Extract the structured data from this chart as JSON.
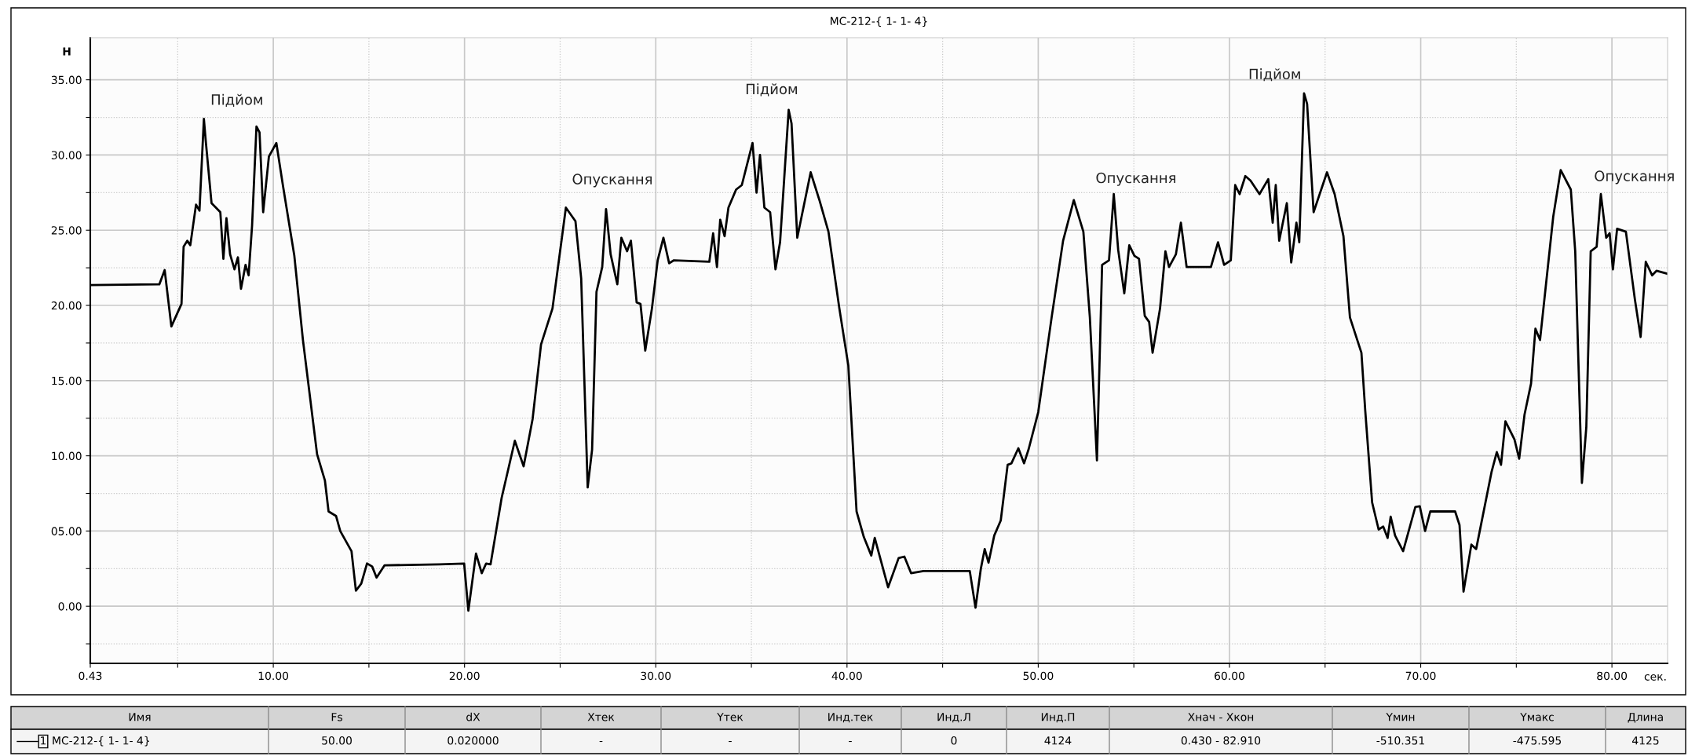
{
  "chart_data": {
    "type": "line",
    "title": "МС-212-{ 1- 1- 4}",
    "ylabel": "Н",
    "xlabel": "сек.",
    "xlim": [
      0.43,
      82.91
    ],
    "ylim": [
      -3.8,
      37.8
    ],
    "xticks": [
      {
        "value": 0.43,
        "label": "0.43"
      },
      {
        "value": 5,
        "label": null
      },
      {
        "value": 10,
        "label": "10.00"
      },
      {
        "value": 15,
        "label": null
      },
      {
        "value": 20,
        "label": "20.00"
      },
      {
        "value": 25,
        "label": null
      },
      {
        "value": 30,
        "label": "30.00"
      },
      {
        "value": 35,
        "label": null
      },
      {
        "value": 40,
        "label": "40.00"
      },
      {
        "value": 45,
        "label": null
      },
      {
        "value": 50,
        "label": "50.00"
      },
      {
        "value": 55,
        "label": null
      },
      {
        "value": 60,
        "label": "60.00"
      },
      {
        "value": 65,
        "label": null
      },
      {
        "value": 70,
        "label": "70.00"
      },
      {
        "value": 75,
        "label": null
      },
      {
        "value": 80,
        "label": "80.00"
      }
    ],
    "yticks": [
      {
        "value": -2.5,
        "label": null
      },
      {
        "value": 0,
        "label": "0.00"
      },
      {
        "value": 2.5,
        "label": null
      },
      {
        "value": 5,
        "label": "05.00"
      },
      {
        "value": 7.5,
        "label": null
      },
      {
        "value": 10,
        "label": "10.00"
      },
      {
        "value": 12.5,
        "label": null
      },
      {
        "value": 15,
        "label": "15.00"
      },
      {
        "value": 17.5,
        "label": null
      },
      {
        "value": 20,
        "label": "20.00"
      },
      {
        "value": 22.5,
        "label": null
      },
      {
        "value": 25,
        "label": "25.00"
      },
      {
        "value": 27.5,
        "label": null
      },
      {
        "value": 30,
        "label": "30.00"
      },
      {
        "value": 32.5,
        "label": null
      },
      {
        "value": 35,
        "label": "35.00"
      }
    ],
    "grid": true,
    "legend": false,
    "marker": "none",
    "line_style": "solid",
    "series": [
      {
        "color": "#000000",
        "x": [
          0.43,
          4.04,
          4.32,
          4.67,
          5.2,
          5.31,
          5.5,
          5.66,
          5.96,
          6.14,
          6.37,
          6.47,
          6.77,
          7.23,
          7.39,
          7.55,
          7.74,
          7.97,
          8.15,
          8.31,
          8.55,
          8.71,
          8.89,
          9.12,
          9.28,
          9.47,
          9.77,
          10.16,
          10.5,
          11.1,
          11.55,
          12.29,
          12.7,
          12.89,
          13.28,
          13.5,
          14.09,
          14.32,
          14.6,
          14.9,
          15.17,
          15.4,
          15.82,
          18.7,
          19.98,
          20.2,
          20.6,
          20.9,
          21.13,
          21.36,
          21.94,
          22.63,
          23.09,
          23.56,
          24.0,
          24.6,
          25.3,
          25.8,
          26.1,
          26.44,
          26.67,
          26.9,
          27.2,
          27.4,
          27.64,
          27.99,
          28.2,
          28.5,
          28.7,
          29.0,
          29.2,
          29.45,
          29.8,
          30.1,
          30.4,
          30.7,
          30.95,
          32.8,
          33.0,
          33.2,
          33.37,
          33.6,
          33.8,
          34.2,
          34.5,
          35.06,
          35.27,
          35.45,
          35.68,
          35.98,
          36.26,
          36.5,
          36.95,
          37.1,
          37.4,
          38.1,
          38.57,
          39.03,
          39.6,
          40.07,
          40.5,
          40.88,
          41.27,
          41.45,
          41.7,
          42.15,
          42.7,
          43.0,
          43.35,
          44.0,
          46.42,
          46.72,
          47.0,
          47.2,
          47.4,
          47.7,
          48.04,
          48.4,
          48.6,
          48.96,
          49.26,
          49.5,
          50.0,
          50.7,
          51.3,
          51.86,
          52.36,
          52.7,
          53.07,
          53.34,
          53.7,
          53.95,
          54.18,
          54.5,
          54.76,
          55.03,
          55.27,
          55.57,
          55.8,
          55.98,
          56.37,
          56.65,
          56.84,
          57.2,
          57.46,
          57.76,
          59.03,
          59.4,
          59.72,
          60.07,
          60.3,
          60.53,
          60.83,
          61.1,
          61.57,
          62.03,
          62.26,
          62.42,
          62.6,
          63.0,
          63.23,
          63.5,
          63.65,
          63.9,
          64.06,
          64.4,
          65.1,
          65.5,
          65.96,
          66.3,
          66.9,
          67.1,
          67.46,
          67.8,
          68.04,
          68.27,
          68.43,
          68.66,
          69.08,
          69.72,
          69.95,
          70.23,
          70.5,
          71.8,
          72.03,
          72.24,
          72.65,
          72.9,
          73.7,
          73.98,
          74.2,
          74.43,
          74.9,
          75.15,
          75.43,
          75.77,
          76.0,
          76.24,
          76.93,
          77.32,
          77.85,
          78.08,
          78.43,
          78.66,
          78.89,
          79.2,
          79.42,
          79.7,
          79.88,
          80.05,
          80.27,
          80.73,
          81.2,
          81.5,
          81.77,
          82.1,
          82.33,
          82.91
        ],
        "values": [
          21.35,
          21.4,
          22.35,
          18.6,
          20.1,
          23.9,
          24.3,
          24.0,
          26.7,
          26.3,
          32.4,
          30.9,
          26.8,
          26.2,
          23.1,
          25.8,
          23.4,
          22.4,
          23.2,
          21.1,
          22.7,
          22.0,
          25.3,
          31.9,
          31.5,
          26.2,
          29.9,
          30.8,
          28.0,
          23.3,
          17.7,
          10.1,
          8.35,
          6.3,
          6.0,
          5.0,
          3.66,
          1.03,
          1.5,
          2.84,
          2.64,
          1.9,
          2.72,
          2.78,
          2.84,
          -0.3,
          3.5,
          2.2,
          2.84,
          2.78,
          7.2,
          11.0,
          9.3,
          12.45,
          17.4,
          19.8,
          26.5,
          25.6,
          21.8,
          7.9,
          10.4,
          20.9,
          22.55,
          26.4,
          23.4,
          21.4,
          24.5,
          23.6,
          24.3,
          20.2,
          20.1,
          17.0,
          19.8,
          23.0,
          24.5,
          22.8,
          23.0,
          22.9,
          24.8,
          22.55,
          25.7,
          24.6,
          26.5,
          27.7,
          28.0,
          30.8,
          27.5,
          30.0,
          26.5,
          26.2,
          22.4,
          24.2,
          33.0,
          32.1,
          24.5,
          28.85,
          26.95,
          24.9,
          19.8,
          16.0,
          6.3,
          4.6,
          3.37,
          4.54,
          3.37,
          1.26,
          3.2,
          3.3,
          2.2,
          2.34,
          2.34,
          -0.1,
          2.5,
          3.8,
          2.9,
          4.7,
          5.7,
          9.4,
          9.5,
          10.5,
          9.5,
          10.45,
          12.9,
          19.2,
          24.3,
          27.0,
          24.9,
          19.2,
          9.7,
          22.7,
          23.0,
          27.4,
          23.7,
          20.8,
          24.0,
          23.3,
          23.1,
          19.3,
          18.9,
          16.85,
          19.8,
          23.6,
          22.55,
          23.4,
          25.5,
          22.55,
          22.55,
          24.2,
          22.7,
          23.0,
          28.0,
          27.4,
          28.6,
          28.3,
          27.4,
          28.4,
          25.5,
          28.0,
          24.3,
          26.8,
          22.85,
          25.5,
          24.2,
          34.1,
          33.4,
          26.2,
          28.85,
          27.4,
          24.6,
          19.2,
          16.85,
          13.0,
          6.9,
          5.1,
          5.3,
          4.54,
          5.95,
          4.7,
          3.66,
          6.6,
          6.65,
          5.0,
          6.3,
          6.3,
          5.4,
          0.97,
          4.1,
          3.8,
          8.9,
          10.25,
          9.4,
          12.3,
          11.1,
          9.8,
          12.75,
          14.8,
          18.45,
          17.7,
          25.9,
          29.0,
          27.7,
          23.6,
          8.2,
          11.9,
          23.6,
          23.9,
          27.4,
          24.5,
          24.8,
          22.4,
          25.1,
          24.9,
          20.4,
          17.9,
          22.9,
          22.0,
          22.3,
          22.1
        ]
      }
    ],
    "annotations": [
      "Підйом",
      "Опускання",
      "Підйом",
      "Опускання",
      "Підйом",
      "Опускання",
      "Имя",
      "Fs",
      "dX",
      "Xтек",
      "Yтек",
      "Инд.тек",
      "Инд.Л",
      "Инд.П",
      "Xнач - Xкон",
      "Yмин",
      "Yмакс",
      "Длина",
      "1",
      "МС-212-{ 1- 1- 4}",
      "50.00",
      "0.020000",
      "-",
      "-",
      "-",
      "0",
      "4124",
      "0.430 - 82.910",
      "-510.351",
      "-475.595",
      "4125"
    ]
  }
}
